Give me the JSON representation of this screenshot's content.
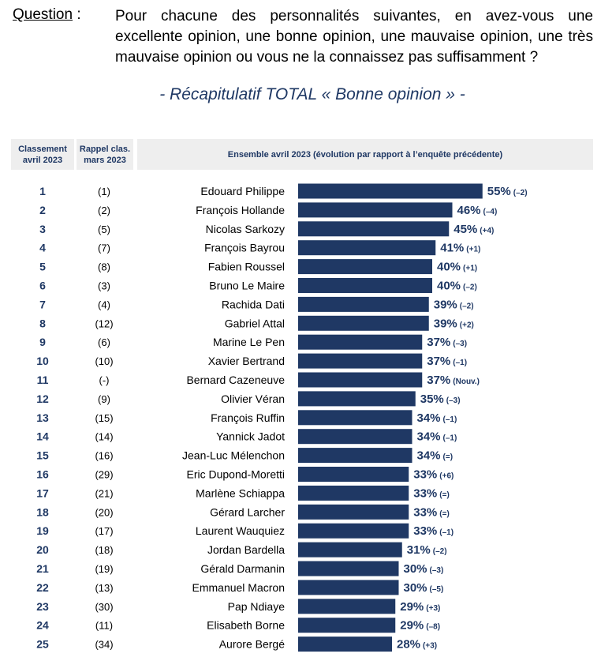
{
  "question": {
    "label": "Question",
    "colon": ":",
    "text": "Pour chacune des personnalités suivantes, en avez-vous une excellente opinion, une bonne opinion, une mauvaise opinion, une très mauvaise opinion ou vous ne la connaissez pas suffisamment ?"
  },
  "subtitle": "- Récapitulatif TOTAL « Bonne opinion » -",
  "headers": {
    "rank": "Classement avril 2023",
    "prev": "Rappel clas. mars 2023",
    "main": "Ensemble avril 2023 (évolution par rapport à l’enquête précédente)"
  },
  "colors": {
    "bar": "#1f3864",
    "text_accent": "#1f3864",
    "header_bg": "#eeeeee"
  },
  "chart_data": {
    "type": "bar",
    "orientation": "horizontal",
    "title": "Récapitulatif TOTAL « Bonne opinion »",
    "unit": "%",
    "rows": [
      {
        "rank": "1",
        "prev": "(1)",
        "name": "Edouard Philippe",
        "value": 55,
        "change": "(–2)"
      },
      {
        "rank": "2",
        "prev": "(2)",
        "name": "François Hollande",
        "value": 46,
        "change": "(–4)"
      },
      {
        "rank": "3",
        "prev": "(5)",
        "name": "Nicolas Sarkozy",
        "value": 45,
        "change": "(+4)"
      },
      {
        "rank": "4",
        "prev": "(7)",
        "name": "François Bayrou",
        "value": 41,
        "change": "(+1)"
      },
      {
        "rank": "5",
        "prev": "(8)",
        "name": "Fabien Roussel",
        "value": 40,
        "change": "(+1)"
      },
      {
        "rank": "6",
        "prev": "(3)",
        "name": "Bruno Le Maire",
        "value": 40,
        "change": "(–2)"
      },
      {
        "rank": "7",
        "prev": "(4)",
        "name": "Rachida Dati",
        "value": 39,
        "change": "(–2)"
      },
      {
        "rank": "8",
        "prev": "(12)",
        "name": "Gabriel Attal",
        "value": 39,
        "change": "(+2)"
      },
      {
        "rank": "9",
        "prev": "(6)",
        "name": "Marine Le Pen",
        "value": 37,
        "change": "(–3)"
      },
      {
        "rank": "10",
        "prev": "(10)",
        "name": "Xavier Bertrand",
        "value": 37,
        "change": "(–1)"
      },
      {
        "rank": "11",
        "prev": "(-)",
        "name": "Bernard Cazeneuve",
        "value": 37,
        "change": "(Nouv.)"
      },
      {
        "rank": "12",
        "prev": "(9)",
        "name": "Olivier Véran",
        "value": 35,
        "change": "(–3)"
      },
      {
        "rank": "13",
        "prev": "(15)",
        "name": "François Ruffin",
        "value": 34,
        "change": "(–1)"
      },
      {
        "rank": "14",
        "prev": "(14)",
        "name": "Yannick Jadot",
        "value": 34,
        "change": "(–1)"
      },
      {
        "rank": "15",
        "prev": "(16)",
        "name": "Jean-Luc Mélenchon",
        "value": 34,
        "change": "(=)"
      },
      {
        "rank": "16",
        "prev": "(29)",
        "name": "Eric Dupond-Moretti",
        "value": 33,
        "change": "(+6)"
      },
      {
        "rank": "17",
        "prev": "(21)",
        "name": "Marlène Schiappa",
        "value": 33,
        "change": "(=)"
      },
      {
        "rank": "18",
        "prev": "(20)",
        "name": "Gérard Larcher",
        "value": 33,
        "change": "(=)"
      },
      {
        "rank": "19",
        "prev": "(17)",
        "name": "Laurent Wauquiez",
        "value": 33,
        "change": "(–1)"
      },
      {
        "rank": "20",
        "prev": "(18)",
        "name": "Jordan Bardella",
        "value": 31,
        "change": "(–2)"
      },
      {
        "rank": "21",
        "prev": "(19)",
        "name": "Gérald Darmanin",
        "value": 30,
        "change": "(–3)"
      },
      {
        "rank": "22",
        "prev": "(13)",
        "name": "Emmanuel Macron",
        "value": 30,
        "change": "(–5)"
      },
      {
        "rank": "23",
        "prev": "(30)",
        "name": "Pap Ndiaye",
        "value": 29,
        "change": "(+3)"
      },
      {
        "rank": "24",
        "prev": "(11)",
        "name": "Elisabeth Borne",
        "value": 29,
        "change": "(–8)"
      },
      {
        "rank": "25",
        "prev": "(34)",
        "name": "Aurore Bergé",
        "value": 28,
        "change": "(+3)"
      }
    ]
  }
}
